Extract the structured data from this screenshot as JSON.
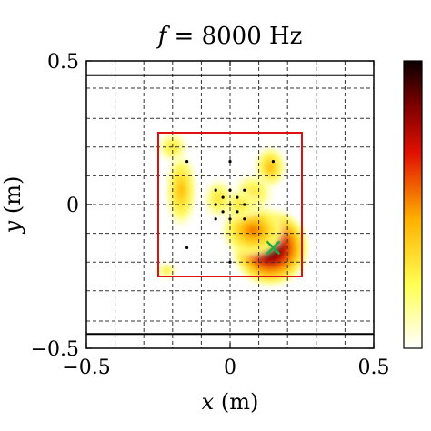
{
  "chart_data": {
    "type": "heatmap",
    "title": "f = 8000 Hz",
    "title_var": "f",
    "title_rest": " = 8000 Hz",
    "xlabel_var": "x",
    "xlabel_unit": " (m)",
    "ylabel_var": "y",
    "ylabel_unit": " (m)",
    "xlim": [
      -0.5,
      0.5
    ],
    "ylim": [
      -0.5,
      0.5
    ],
    "xticks": [
      "−0.5",
      "0",
      "0.5"
    ],
    "yticks": [
      "−0.5",
      "0",
      "0.5"
    ],
    "xtick_values": [
      -0.5,
      0,
      0.5
    ],
    "ytick_values": [
      -0.5,
      0,
      0.5
    ],
    "grid": true,
    "grid_spacing": 0.1,
    "colormap": "hot (reversed)",
    "colorbar_position": "right",
    "boundary_lines_y": [
      0.45,
      -0.45
    ],
    "dashed_lines_y": [
      0.405,
      -0.405
    ],
    "scan_region": {
      "x": [
        -0.25,
        0.25
      ],
      "y": [
        -0.25,
        0.25
      ],
      "color": "#dd1111"
    },
    "source_marker": {
      "x": 0.15,
      "y": -0.15,
      "symbol": "x",
      "color": "#22aa44"
    },
    "microphones": [
      [
        -0.15,
        0.15
      ],
      [
        -0.15,
        -0.15
      ],
      [
        0,
        0.15
      ],
      [
        0,
        -0.2
      ],
      [
        -0.05,
        0.05
      ],
      [
        -0.05,
        0
      ],
      [
        -0.05,
        -0.05
      ],
      [
        0,
        0.05
      ],
      [
        0,
        0
      ],
      [
        0,
        -0.05
      ],
      [
        0.05,
        0.05
      ],
      [
        0.05,
        0
      ],
      [
        0.05,
        -0.05
      ],
      [
        -0.025,
        0.025
      ],
      [
        0.025,
        0.025
      ],
      [
        -0.025,
        -0.025
      ],
      [
        0.025,
        -0.025
      ],
      [
        0.15,
        0.15
      ]
    ],
    "hotspots": [
      {
        "x": 0.14,
        "y": -0.15,
        "level": 1.0,
        "sx": 0.07,
        "sy": 0.07
      },
      {
        "x": 0.08,
        "y": -0.09,
        "level": 0.55,
        "sx": 0.06,
        "sy": 0.05
      },
      {
        "x": 0.14,
        "y": 0.13,
        "level": 0.35,
        "sx": 0.03,
        "sy": 0.04
      },
      {
        "x": 0.08,
        "y": 0.04,
        "level": 0.3,
        "sx": 0.04,
        "sy": 0.04
      },
      {
        "x": 0.03,
        "y": 0.0,
        "level": 0.3,
        "sx": 0.04,
        "sy": 0.03
      },
      {
        "x": -0.04,
        "y": 0.02,
        "level": 0.3,
        "sx": 0.03,
        "sy": 0.04
      },
      {
        "x": -0.17,
        "y": 0.05,
        "level": 0.33,
        "sx": 0.03,
        "sy": 0.07
      },
      {
        "x": -0.2,
        "y": 0.2,
        "level": 0.3,
        "sx": 0.03,
        "sy": 0.03
      },
      {
        "x": -0.22,
        "y": -0.23,
        "level": 0.26,
        "sx": 0.02,
        "sy": 0.015
      }
    ]
  }
}
